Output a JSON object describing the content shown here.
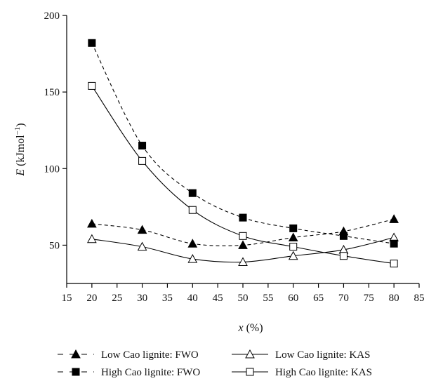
{
  "chart_data": {
    "type": "line",
    "title": "",
    "xlabel": "x (%)",
    "ylabel": "E (kJmol−1)",
    "x_ticks": [
      15,
      20,
      25,
      30,
      35,
      40,
      45,
      50,
      55,
      60,
      65,
      70,
      75,
      80,
      85
    ],
    "y_ticks": [
      50,
      100,
      150,
      200
    ],
    "xlim": [
      15,
      85
    ],
    "ylim": [
      25,
      200
    ],
    "grid": false,
    "legend_position": "bottom",
    "series": [
      {
        "name": "Low Cao lignite: FWO",
        "marker": "filled-triangle",
        "line": "dashed",
        "x": [
          20,
          30,
          40,
          50,
          60,
          70,
          80
        ],
        "y": [
          64,
          60,
          51,
          50,
          55,
          59,
          67
        ]
      },
      {
        "name": "Low Cao lignite: KAS",
        "marker": "open-triangle",
        "line": "solid",
        "x": [
          20,
          30,
          40,
          50,
          60,
          70,
          80
        ],
        "y": [
          54,
          49,
          41,
          39,
          43,
          47,
          55
        ]
      },
      {
        "name": "High Cao lignite: FWO",
        "marker": "filled-square",
        "line": "dashed",
        "x": [
          20,
          30,
          40,
          50,
          60,
          70,
          80
        ],
        "y": [
          182,
          115,
          84,
          68,
          61,
          56,
          51
        ]
      },
      {
        "name": "High Cao lignite: KAS",
        "marker": "open-square",
        "line": "solid",
        "x": [
          20,
          30,
          40,
          50,
          60,
          70,
          80
        ],
        "y": [
          154,
          105,
          73,
          56,
          49,
          43,
          38
        ]
      }
    ]
  }
}
